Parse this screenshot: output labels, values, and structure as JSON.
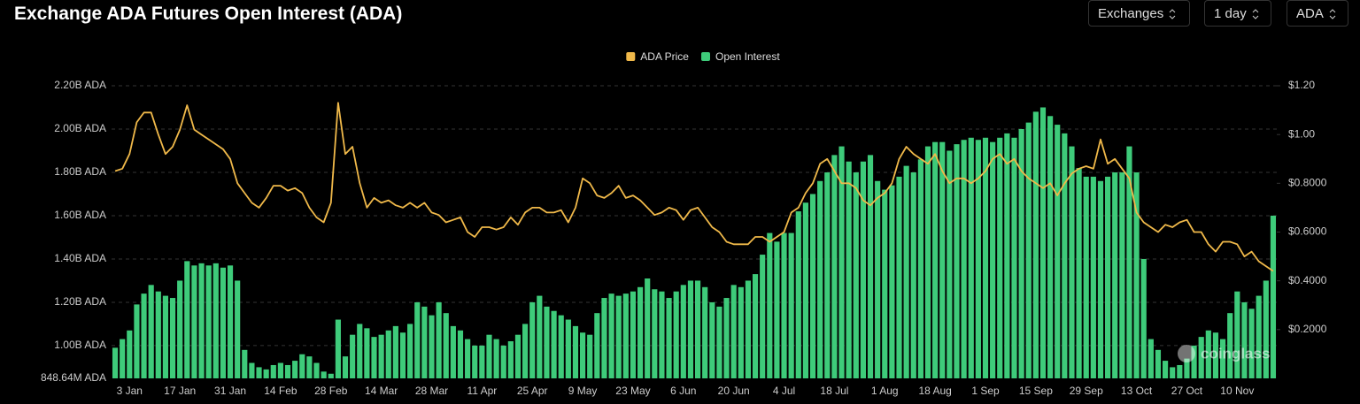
{
  "chart_data": {
    "type": "bar_line",
    "title": "Exchange ADA Futures Open Interest (ADA)",
    "controls": [
      "Exchanges",
      "1 day",
      "ADA"
    ],
    "watermark": "coinglass",
    "legend": "top",
    "grid": true,
    "categories": [
      null,
      null,
      "3 Jan",
      null,
      null,
      null,
      null,
      null,
      null,
      "17 Jan",
      null,
      null,
      null,
      null,
      null,
      null,
      "31 Jan",
      null,
      null,
      null,
      null,
      null,
      null,
      "14 Feb",
      null,
      null,
      null,
      null,
      null,
      null,
      "28 Feb",
      null,
      null,
      null,
      null,
      null,
      null,
      "14 Mar",
      null,
      null,
      null,
      null,
      null,
      null,
      "28 Mar",
      null,
      null,
      null,
      null,
      null,
      null,
      "11 Apr",
      null,
      null,
      null,
      null,
      null,
      null,
      "25 Apr",
      null,
      null,
      null,
      null,
      null,
      null,
      "9 May",
      null,
      null,
      null,
      null,
      null,
      null,
      "23 May",
      null,
      null,
      null,
      null,
      null,
      null,
      "6 Jun",
      null,
      null,
      null,
      null,
      null,
      null,
      "20 Jun",
      null,
      null,
      null,
      null,
      null,
      null,
      "4 Jul",
      null,
      null,
      null,
      null,
      null,
      null,
      "18 Jul",
      null,
      null,
      null,
      null,
      null,
      null,
      "1 Aug",
      null,
      null,
      null,
      null,
      null,
      null,
      "18 Aug",
      null,
      null,
      null,
      null,
      null,
      null,
      "1 Sep",
      null,
      null,
      null,
      null,
      null,
      null,
      "15 Sep",
      null,
      null,
      null,
      null,
      null,
      null,
      "29 Sep",
      null,
      null,
      null,
      null,
      null,
      null,
      "13 Oct",
      null,
      null,
      null,
      null,
      null,
      null,
      "27 Oct",
      null,
      null,
      null,
      null,
      null,
      null,
      "10 Nov",
      null,
      null,
      null,
      null,
      null
    ],
    "series": [
      {
        "name": "ADA Price",
        "type": "line",
        "axis": "y2",
        "color": "#f0b94a",
        "values": [
          0.85,
          0.86,
          0.92,
          1.05,
          1.09,
          1.09,
          1.0,
          0.92,
          0.95,
          1.02,
          1.12,
          1.02,
          1.0,
          0.98,
          0.96,
          0.94,
          0.9,
          0.8,
          0.76,
          0.72,
          0.7,
          0.74,
          0.79,
          0.79,
          0.77,
          0.78,
          0.76,
          0.7,
          0.66,
          0.64,
          0.72,
          1.13,
          0.92,
          0.95,
          0.8,
          0.7,
          0.74,
          0.72,
          0.73,
          0.71,
          0.7,
          0.72,
          0.7,
          0.72,
          0.68,
          0.67,
          0.64,
          0.65,
          0.66,
          0.6,
          0.58,
          0.62,
          0.62,
          0.61,
          0.62,
          0.66,
          0.63,
          0.68,
          0.7,
          0.7,
          0.68,
          0.68,
          0.69,
          0.64,
          0.7,
          0.82,
          0.8,
          0.75,
          0.74,
          0.76,
          0.79,
          0.74,
          0.75,
          0.73,
          0.7,
          0.67,
          0.68,
          0.7,
          0.69,
          0.65,
          0.69,
          0.7,
          0.66,
          0.62,
          0.6,
          0.56,
          0.55,
          0.55,
          0.55,
          0.58,
          0.58,
          0.56,
          0.58,
          0.6,
          0.68,
          0.7,
          0.76,
          0.8,
          0.88,
          0.9,
          0.85,
          0.8,
          0.8,
          0.78,
          0.73,
          0.71,
          0.74,
          0.76,
          0.8,
          0.9,
          0.95,
          0.92,
          0.9,
          0.88,
          0.92,
          0.85,
          0.8,
          0.82,
          0.82,
          0.8,
          0.82,
          0.85,
          0.9,
          0.92,
          0.88,
          0.9,
          0.85,
          0.82,
          0.8,
          0.78,
          0.8,
          0.75,
          0.8,
          0.84,
          0.86,
          0.87,
          0.86,
          0.98,
          0.88,
          0.9,
          0.86,
          0.82,
          0.68,
          0.64,
          0.62,
          0.6,
          0.63,
          0.62,
          0.64,
          0.65,
          0.6,
          0.6,
          0.55,
          0.52,
          0.56,
          0.56,
          0.55,
          0.5,
          0.52,
          0.48,
          0.46,
          0.44
        ]
      },
      {
        "name": "Open Interest",
        "type": "bar",
        "axis": "y",
        "color": "#3ecb7a",
        "values": [
          990000000,
          1030000000,
          1070000000,
          1190000000,
          1240000000,
          1280000000,
          1250000000,
          1230000000,
          1220000000,
          1300000000,
          1390000000,
          1370000000,
          1380000000,
          1370000000,
          1380000000,
          1360000000,
          1370000000,
          1300000000,
          980000000,
          920000000,
          900000000,
          890000000,
          910000000,
          920000000,
          910000000,
          930000000,
          960000000,
          950000000,
          920000000,
          880000000,
          870000000,
          1120000000,
          950000000,
          1050000000,
          1100000000,
          1080000000,
          1040000000,
          1050000000,
          1070000000,
          1090000000,
          1060000000,
          1100000000,
          1200000000,
          1180000000,
          1140000000,
          1200000000,
          1150000000,
          1090000000,
          1070000000,
          1030000000,
          1000000000,
          1000000000,
          1050000000,
          1030000000,
          1000000000,
          1020000000,
          1050000000,
          1100000000,
          1200000000,
          1230000000,
          1180000000,
          1160000000,
          1140000000,
          1120000000,
          1090000000,
          1060000000,
          1050000000,
          1150000000,
          1220000000,
          1240000000,
          1230000000,
          1240000000,
          1250000000,
          1270000000,
          1310000000,
          1260000000,
          1250000000,
          1220000000,
          1250000000,
          1280000000,
          1300000000,
          1300000000,
          1270000000,
          1200000000,
          1180000000,
          1220000000,
          1280000000,
          1270000000,
          1300000000,
          1330000000,
          1420000000,
          1520000000,
          1480000000,
          1520000000,
          1520000000,
          1620000000,
          1660000000,
          1700000000,
          1760000000,
          1800000000,
          1880000000,
          1920000000,
          1850000000,
          1800000000,
          1850000000,
          1880000000,
          1760000000,
          1720000000,
          1740000000,
          1780000000,
          1830000000,
          1800000000,
          1860000000,
          1920000000,
          1940000000,
          1940000000,
          1900000000,
          1930000000,
          1950000000,
          1960000000,
          1950000000,
          1960000000,
          1940000000,
          1960000000,
          1980000000,
          1960000000,
          2000000000,
          2030000000,
          2080000000,
          2100000000,
          2060000000,
          2020000000,
          1980000000,
          1920000000,
          1820000000,
          1780000000,
          1780000000,
          1760000000,
          1780000000,
          1800000000,
          1800000000,
          1920000000,
          1800000000,
          1400000000,
          1030000000,
          980000000,
          930000000,
          900000000,
          910000000,
          940000000,
          1000000000,
          1040000000,
          1070000000,
          1060000000,
          1030000000,
          1150000000,
          1250000000,
          1200000000,
          1170000000,
          1230000000,
          1300000000,
          1600000000
        ]
      }
    ],
    "ylim": [
      848640000,
      2200000000
    ],
    "yticks": [
      {
        "value": 848640000,
        "label": "848.64M ADA"
      },
      {
        "value": 1000000000,
        "label": "1.00B ADA"
      },
      {
        "value": 1200000000,
        "label": "1.20B ADA"
      },
      {
        "value": 1400000000,
        "label": "1.40B ADA"
      },
      {
        "value": 1600000000,
        "label": "1.60B ADA"
      },
      {
        "value": 1800000000,
        "label": "1.80B ADA"
      },
      {
        "value": 2000000000,
        "label": "2.00B ADA"
      },
      {
        "value": 2200000000,
        "label": "2.20B ADA"
      }
    ],
    "y2lim": [
      0,
      1.2
    ],
    "y2ticks": [
      {
        "value": 0.2,
        "label": "$0.2000"
      },
      {
        "value": 0.4,
        "label": "$0.4000"
      },
      {
        "value": 0.6,
        "label": "$0.6000"
      },
      {
        "value": 0.8,
        "label": "$0.8000"
      },
      {
        "value": 1.0,
        "label": "$1.00"
      },
      {
        "value": 1.2,
        "label": "$1.20"
      }
    ]
  }
}
